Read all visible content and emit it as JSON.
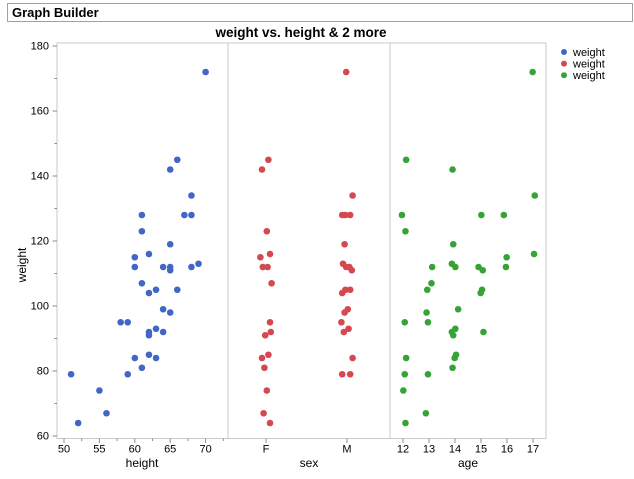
{
  "window": {
    "title": "Graph Builder"
  },
  "chart": {
    "title": "weight vs. height & 2 more",
    "y_axis": {
      "label": "weight",
      "min": 60,
      "max": 180,
      "ticks": [
        60,
        80,
        100,
        120,
        140,
        160,
        180
      ],
      "minor_ticks": [
        70,
        90,
        110,
        130,
        150,
        170
      ]
    },
    "panels": [
      {
        "x_label": "height",
        "type": "numeric",
        "ticks": [
          50,
          55,
          60,
          65,
          70
        ],
        "minor_ticks": [
          52.5,
          57.5,
          62.5,
          67.5,
          72.5
        ],
        "point_color": "#4166C8"
      },
      {
        "x_label": "sex",
        "type": "categorical",
        "categories": [
          "F",
          "M"
        ],
        "point_color": "#D4494F"
      },
      {
        "x_label": "age",
        "type": "categorical",
        "categories": [
          12,
          13,
          14,
          15,
          16,
          17
        ],
        "point_color": "#35A435"
      }
    ],
    "legend": {
      "position": "top-right",
      "entries": [
        {
          "label": "weight",
          "color": "#4166C8"
        },
        {
          "label": "weight",
          "color": "#D4494F"
        },
        {
          "label": "weight",
          "color": "#35A435"
        }
      ]
    }
  },
  "chart_data": {
    "type": "scatter",
    "title": "weight vs. height & 2 more",
    "xlabel_panels": [
      "height",
      "sex",
      "age"
    ],
    "ylabel": "weight",
    "ylim": [
      60,
      180
    ],
    "columns": [
      "height",
      "weight",
      "sex",
      "age"
    ],
    "points": [
      [
        70,
        172,
        "M",
        17
      ],
      [
        66,
        145,
        "F",
        12
      ],
      [
        65,
        142,
        "F",
        14
      ],
      [
        68,
        134,
        "M",
        17
      ],
      [
        61,
        128,
        "M",
        12
      ],
      [
        67,
        128,
        "M",
        15
      ],
      [
        68,
        128,
        "M",
        16
      ],
      [
        61,
        123,
        "F",
        12
      ],
      [
        65,
        119,
        "M",
        14
      ],
      [
        62,
        116,
        "F",
        17
      ],
      [
        60,
        115,
        "F",
        16
      ],
      [
        60,
        112,
        "F",
        13
      ],
      [
        64,
        112,
        "F",
        15
      ],
      [
        65,
        111,
        "M",
        15
      ],
      [
        65,
        112,
        "M",
        16
      ],
      [
        68,
        112,
        "M",
        14
      ],
      [
        69,
        113,
        "M",
        14
      ],
      [
        61,
        107,
        "F",
        13
      ],
      [
        63,
        105,
        "M",
        13
      ],
      [
        66,
        105,
        "M",
        15
      ],
      [
        62,
        104,
        "M",
        15
      ],
      [
        64,
        99,
        "M",
        14
      ],
      [
        65,
        98,
        "M",
        13
      ],
      [
        59,
        95,
        "F",
        12
      ],
      [
        58,
        95,
        "M",
        13
      ],
      [
        63,
        93,
        "M",
        14
      ],
      [
        64,
        92,
        "M",
        14
      ],
      [
        62,
        92,
        "F",
        15
      ],
      [
        62,
        91,
        "F",
        14
      ],
      [
        62,
        85,
        "F",
        14
      ],
      [
        63,
        84,
        "F",
        14
      ],
      [
        60,
        84,
        "M",
        12
      ],
      [
        61,
        81,
        "F",
        14
      ],
      [
        51,
        79,
        "M",
        12
      ],
      [
        59,
        79,
        "M",
        13
      ],
      [
        55,
        74,
        "F",
        12
      ],
      [
        56,
        67,
        "F",
        13
      ],
      [
        52,
        64,
        "F",
        12
      ]
    ]
  }
}
